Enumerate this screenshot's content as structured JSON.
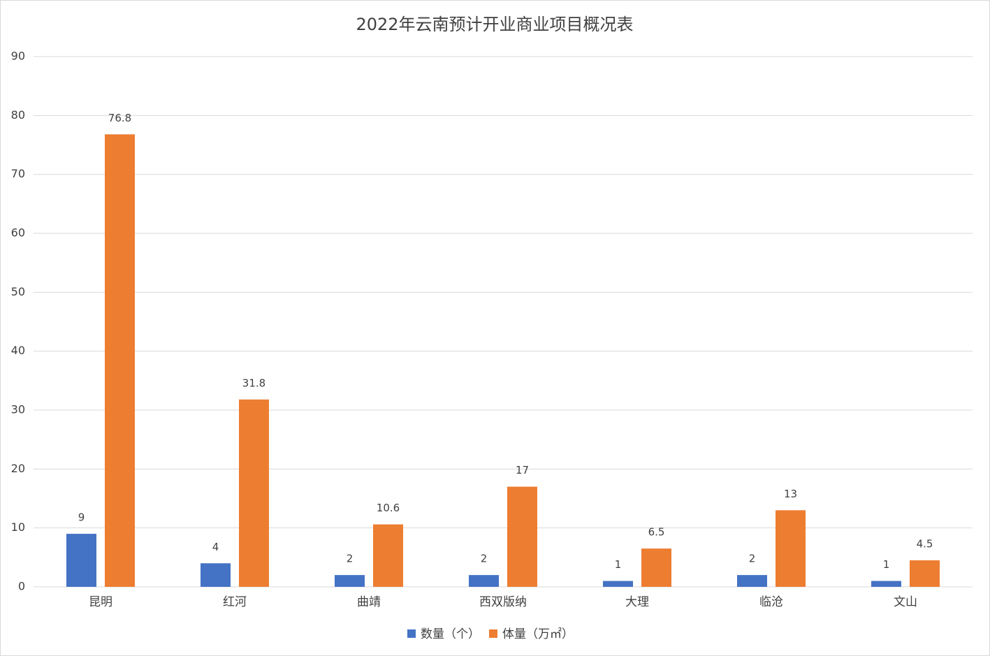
{
  "chart_data": {
    "type": "bar",
    "title": "2022年云南预计开业商业项目概况表",
    "categories": [
      "昆明",
      "红河",
      "曲靖",
      "西双版纳",
      "大理",
      "临沧",
      "文山"
    ],
    "series": [
      {
        "name": "数量（个）",
        "color": "#4472c4",
        "values": [
          9,
          4,
          2,
          2,
          1,
          2,
          1
        ]
      },
      {
        "name": "体量（万㎡）",
        "color": "#ed7d31",
        "values": [
          76.8,
          31.8,
          10.6,
          17,
          6.5,
          13,
          4.5
        ]
      }
    ],
    "ylim": [
      0,
      90
    ],
    "yticks": [
      0,
      10,
      20,
      30,
      40,
      50,
      60,
      70,
      80,
      90
    ],
    "grid": true,
    "legend": "bottom"
  }
}
